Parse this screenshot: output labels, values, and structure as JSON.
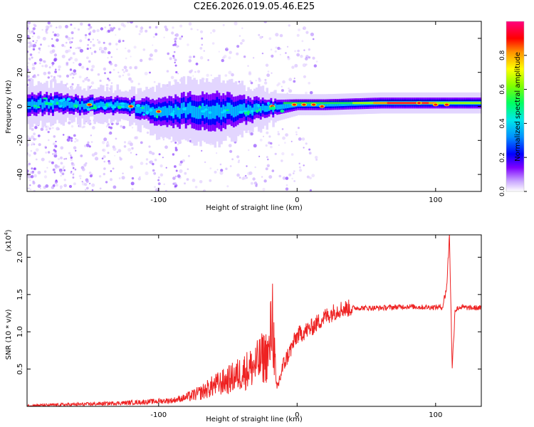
{
  "title": "C2E6.2026.019.05.46.E25",
  "chart_data": [
    {
      "type": "heatmap",
      "title": "C2E6.2026.019.05.46.E25",
      "xlabel": "Height of straight line (km)",
      "ylabel": "Frequency (Hz)",
      "xlim": [
        -195,
        133
      ],
      "ylim": [
        -50,
        50
      ],
      "xticks": [
        -100,
        0,
        100
      ],
      "yticks": [
        -40,
        -20,
        0,
        20,
        40
      ],
      "colorbar": {
        "label": "Normalized spectral amplitude",
        "range": [
          0,
          1
        ],
        "ticks": [
          0.0,
          0.2,
          0.4,
          0.6,
          0.8
        ],
        "colormap": [
          "#ffffff",
          "#7f00ff",
          "#0000ff",
          "#00c0ff",
          "#00ff80",
          "#80ff00",
          "#ffff00",
          "#ff8000",
          "#ff0000",
          "#ff0080"
        ]
      },
      "ridge": {
        "x": [
          -195,
          -150,
          -120,
          -100,
          -80,
          -60,
          -40,
          -20,
          0,
          20,
          60,
          100,
          133
        ],
        "center_hz": [
          2,
          1,
          0,
          -4,
          -2,
          -3,
          -2,
          -1,
          1,
          1,
          2,
          2,
          2
        ],
        "halfwidth_hz": [
          4,
          3,
          3,
          5,
          6,
          7,
          5,
          3,
          2,
          2,
          2,
          2,
          2
        ]
      }
    },
    {
      "type": "line",
      "xlabel": "Height of straight line (km)",
      "ylabel": "SNR (10 * v/v)",
      "y_scale_label": "(x10",
      "y_scale_exp": "4",
      "xlim": [
        -195,
        133
      ],
      "ylim": [
        0,
        2.3
      ],
      "xticks": [
        -100,
        0,
        100
      ],
      "yticks": [
        0.5,
        1.0,
        1.5,
        2.0
      ],
      "ytick_labels": [
        "0.5",
        "1.0",
        "1.5",
        "2.0"
      ],
      "color": "#ee2222",
      "series": [
        {
          "name": "SNR",
          "x": [
            -195,
            -150,
            -120,
            -100,
            -90,
            -80,
            -70,
            -60,
            -50,
            -40,
            -30,
            -25,
            -20,
            -18,
            -15,
            -10,
            -5,
            0,
            10,
            20,
            30,
            40,
            50,
            60,
            70,
            80,
            90,
            100,
            105,
            108,
            110,
            112,
            114,
            118,
            125,
            133
          ],
          "y": [
            0.01,
            0.03,
            0.05,
            0.07,
            0.08,
            0.12,
            0.18,
            0.28,
            0.35,
            0.45,
            0.55,
            0.65,
            0.7,
            1.3,
            0.2,
            0.55,
            0.75,
            0.95,
            1.05,
            1.2,
            1.3,
            1.32,
            1.32,
            1.32,
            1.33,
            1.34,
            1.33,
            1.33,
            1.33,
            1.6,
            2.3,
            0.5,
            1.3,
            1.33,
            1.32,
            1.32
          ]
        }
      ]
    }
  ]
}
